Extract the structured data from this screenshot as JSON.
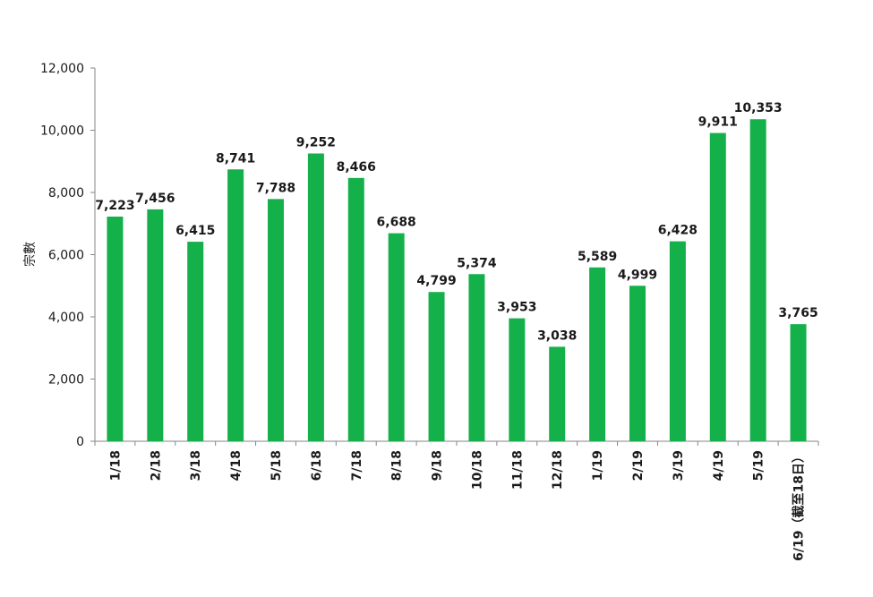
{
  "chart_data": {
    "type": "bar",
    "ylabel": "宗數",
    "ylim": [
      0,
      12000
    ],
    "yticks": [
      "0",
      "2,000",
      "4,000",
      "6,000",
      "8,000",
      "10,000",
      "12,000"
    ],
    "ytick_values": [
      0,
      2000,
      4000,
      6000,
      8000,
      10000,
      12000
    ],
    "grid": false,
    "bar_color": "#14b04a",
    "categories": [
      "1/18",
      "2/18",
      "3/18",
      "4/18",
      "5/18",
      "6/18",
      "7/18",
      "8/18",
      "9/18",
      "10/18",
      "11/18",
      "12/18",
      "1/19",
      "2/19",
      "3/19",
      "4/19",
      "5/19",
      "6/19（截至18日）"
    ],
    "values": [
      7223,
      7456,
      6415,
      8741,
      7788,
      9252,
      8466,
      6688,
      4799,
      5374,
      3953,
      3038,
      5589,
      4999,
      6428,
      9911,
      10353,
      3765
    ],
    "value_labels": [
      "7,223",
      "7,456",
      "6,415",
      "8,741",
      "7,788",
      "9,252",
      "8,466",
      "6,688",
      "4,799",
      "5,374",
      "3,953",
      "3,038",
      "5,589",
      "4,999",
      "6,428",
      "9,911",
      "10,353",
      "3,765"
    ]
  }
}
